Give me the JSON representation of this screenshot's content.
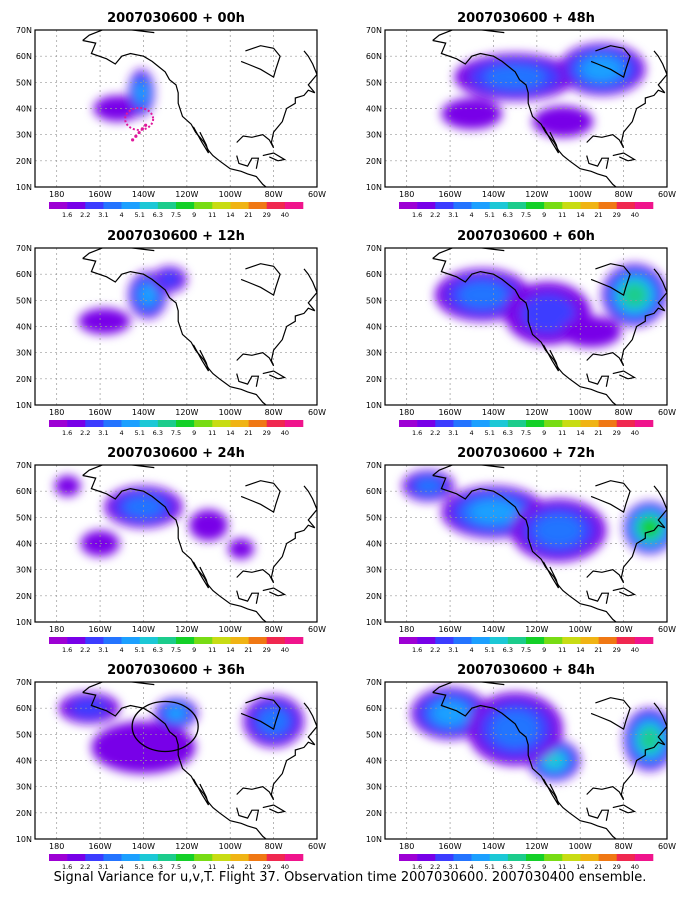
{
  "caption": "Signal Variance for u,v,T. Flight 37. Observation time 2007030600. 2007030400 ensemble.",
  "chart_data": [
    {
      "type": "heatmap",
      "title": "2007030600 + 00h",
      "x_ticks": [
        "180",
        "160W",
        "140W",
        "120W",
        "100W",
        "80W",
        "60W"
      ],
      "y_ticks": [
        "10N",
        "20N",
        "30N",
        "40N",
        "50N",
        "60N",
        "70N"
      ],
      "blobs": [
        [
          -152,
          40,
          11,
          5,
          0
        ],
        [
          -141,
          46,
          6,
          9,
          3
        ]
      ]
    },
    {
      "type": "heatmap",
      "title": "2007030600 + 48h",
      "x_ticks": [
        "180",
        "160W",
        "140W",
        "120W",
        "100W",
        "80W",
        "60W"
      ],
      "y_ticks": [
        "10N",
        "20N",
        "30N",
        "40N",
        "50N",
        "60N",
        "70N"
      ],
      "blobs": [
        [
          -130,
          52,
          28,
          9,
          2
        ],
        [
          -90,
          55,
          20,
          10,
          3
        ],
        [
          -150,
          38,
          14,
          6,
          0
        ],
        [
          -108,
          35,
          14,
          6,
          0
        ]
      ]
    },
    {
      "type": "heatmap",
      "title": "2007030600 + 12h",
      "x_ticks": [
        "180",
        "160W",
        "140W",
        "120W",
        "100W",
        "80W",
        "60W"
      ],
      "y_ticks": [
        "10N",
        "20N",
        "30N",
        "40N",
        "50N",
        "60N",
        "70N"
      ],
      "blobs": [
        [
          -138,
          52,
          9,
          9,
          3
        ],
        [
          -158,
          42,
          12,
          5,
          0
        ],
        [
          -128,
          58,
          8,
          5,
          1
        ]
      ]
    },
    {
      "type": "heatmap",
      "title": "2007030600 + 60h",
      "x_ticks": [
        "180",
        "160W",
        "140W",
        "120W",
        "100W",
        "80W",
        "60W"
      ],
      "y_ticks": [
        "10N",
        "20N",
        "30N",
        "40N",
        "50N",
        "60N",
        "70N"
      ],
      "blobs": [
        [
          -145,
          52,
          22,
          10,
          2
        ],
        [
          -75,
          52,
          15,
          12,
          5
        ],
        [
          -115,
          45,
          20,
          12,
          1
        ],
        [
          -95,
          38,
          14,
          6,
          0
        ]
      ]
    },
    {
      "type": "heatmap",
      "title": "2007030600 + 24h",
      "x_ticks": [
        "180",
        "160W",
        "140W",
        "120W",
        "100W",
        "80W",
        "60W"
      ],
      "y_ticks": [
        "10N",
        "20N",
        "30N",
        "40N",
        "50N",
        "60N",
        "70N"
      ],
      "blobs": [
        [
          -140,
          54,
          18,
          8,
          2
        ],
        [
          -160,
          40,
          9,
          5,
          0
        ],
        [
          -110,
          47,
          9,
          6,
          0
        ],
        [
          -95,
          38,
          6,
          4,
          0
        ],
        [
          -175,
          62,
          6,
          4,
          0
        ]
      ]
    },
    {
      "type": "heatmap",
      "title": "2007030600 + 72h",
      "x_ticks": [
        "180",
        "160W",
        "140W",
        "120W",
        "100W",
        "80W",
        "60W"
      ],
      "y_ticks": [
        "10N",
        "20N",
        "30N",
        "40N",
        "50N",
        "60N",
        "70N"
      ],
      "blobs": [
        [
          -140,
          52,
          24,
          10,
          3
        ],
        [
          -68,
          46,
          12,
          10,
          6
        ],
        [
          -110,
          45,
          22,
          12,
          2
        ],
        [
          -170,
          62,
          12,
          6,
          2
        ]
      ]
    },
    {
      "type": "heatmap",
      "title": "2007030600 + 36h",
      "x_ticks": [
        "180",
        "160W",
        "140W",
        "120W",
        "100W",
        "80W",
        "60W"
      ],
      "y_ticks": [
        "10N",
        "20N",
        "30N",
        "40N",
        "50N",
        "60N",
        "70N"
      ],
      "blobs": [
        [
          -125,
          58,
          10,
          6,
          3
        ],
        [
          -165,
          60,
          14,
          6,
          1
        ],
        [
          -140,
          45,
          24,
          10,
          0
        ],
        [
          -80,
          55,
          14,
          10,
          2
        ]
      ]
    },
    {
      "type": "heatmap",
      "title": "2007030600 + 84h",
      "x_ticks": [
        "180",
        "160W",
        "140W",
        "120W",
        "100W",
        "80W",
        "60W"
      ],
      "y_ticks": [
        "10N",
        "20N",
        "30N",
        "40N",
        "50N",
        "60N",
        "70N"
      ],
      "blobs": [
        [
          -160,
          58,
          18,
          10,
          3
        ],
        [
          -112,
          40,
          12,
          8,
          4
        ],
        [
          -68,
          48,
          12,
          12,
          5
        ],
        [
          -130,
          52,
          22,
          14,
          2
        ]
      ]
    }
  ],
  "colorbar": {
    "labels": [
      "1.6",
      "2.2",
      "3.1",
      "4",
      "5.1",
      "6.3",
      "7.5",
      "9",
      "11",
      "14",
      "21",
      "29",
      "40"
    ],
    "colors": [
      "#9d00d4",
      "#7800e8",
      "#3c3cff",
      "#2474ff",
      "#1ca0ff",
      "#1cc8d6",
      "#1ccc8c",
      "#14d028",
      "#78dc14",
      "#c8dc14",
      "#f0b414",
      "#f07814",
      "#f02850",
      "#f0148c"
    ]
  }
}
